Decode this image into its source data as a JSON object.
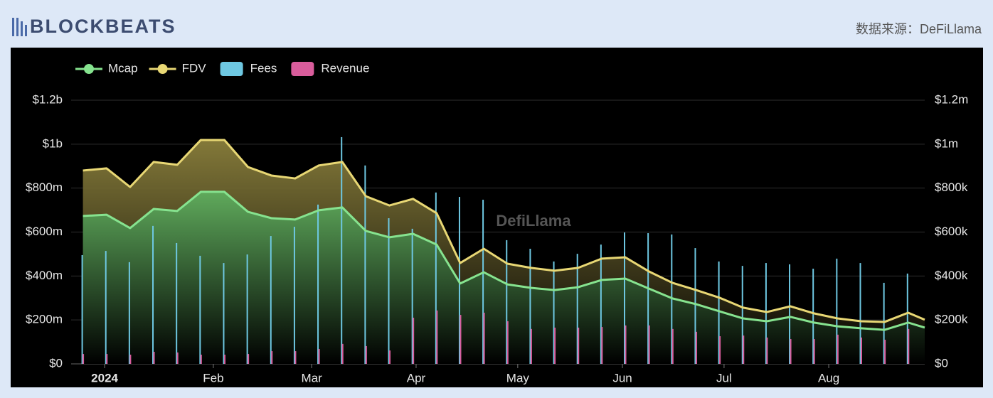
{
  "header": {
    "logo": "BLOCKBEATS",
    "source": "数据来源：DeFiLlama"
  },
  "chart_data": {
    "type": "line",
    "watermark": "DefiLlama",
    "x": [
      0,
      1,
      2,
      3,
      4,
      5,
      6,
      7,
      8,
      9,
      10,
      11,
      12,
      13,
      14,
      15,
      16,
      17,
      18,
      19,
      20,
      21,
      22,
      23,
      24,
      25,
      26,
      27,
      28,
      29,
      30,
      31,
      32,
      33,
      34,
      35,
      35.7
    ],
    "xlim": [
      -0.5,
      35.7
    ],
    "xticks": [
      {
        "value": 0.92,
        "label": "2024"
      },
      {
        "value": 5.53,
        "label": "Feb"
      },
      {
        "value": 9.7,
        "label": "Mar"
      },
      {
        "value": 14.13,
        "label": "Apr"
      },
      {
        "value": 18.44,
        "label": "May"
      },
      {
        "value": 22.88,
        "label": "Jun"
      },
      {
        "value": 27.19,
        "label": "Jul"
      },
      {
        "value": 31.63,
        "label": "Aug"
      }
    ],
    "ylim": [
      0,
      1200000000
    ],
    "yticks": [
      {
        "value": 0,
        "label": "$0"
      },
      {
        "value": 200000000,
        "label": "$200m"
      },
      {
        "value": 400000000,
        "label": "$400m"
      },
      {
        "value": 600000000,
        "label": "$600m"
      },
      {
        "value": 800000000,
        "label": "$800m"
      },
      {
        "value": 1000000000,
        "label": "$1b"
      },
      {
        "value": 1200000000,
        "label": "$1.2b"
      }
    ],
    "y2lim": [
      0,
      1200000
    ],
    "y2ticks": [
      {
        "value": 0,
        "label": "$0"
      },
      {
        "value": 200000,
        "label": "$200k"
      },
      {
        "value": 400000,
        "label": "$400k"
      },
      {
        "value": 600000,
        "label": "$600k"
      },
      {
        "value": 800000,
        "label": "$800k"
      },
      {
        "value": 1000000,
        "label": "$1m"
      },
      {
        "value": 1200000,
        "label": "$1.2m"
      }
    ],
    "grid": true,
    "legend": "top-left",
    "series": [
      {
        "name": "Mcap",
        "type": "line",
        "color": "#86e38f",
        "values": [
          673000000,
          679000000,
          618000000,
          705000000,
          696000000,
          783000000,
          783000000,
          692000000,
          663000000,
          657000000,
          699000000,
          712000000,
          605000000,
          576000000,
          592000000,
          543000000,
          366000000,
          417000000,
          362000000,
          346000000,
          336000000,
          349000000,
          382000000,
          388000000,
          343000000,
          298000000,
          272000000,
          239000000,
          207000000,
          194000000,
          214000000,
          188000000,
          171000000,
          162000000,
          155000000,
          188000000,
          165000000
        ]
      },
      {
        "name": "FDV",
        "type": "line",
        "color": "#e8d774",
        "values": [
          880000000,
          890000000,
          805000000,
          919000000,
          906000000,
          1019000000,
          1019000000,
          896000000,
          857000000,
          844000000,
          903000000,
          919000000,
          763000000,
          721000000,
          751000000,
          686000000,
          459000000,
          524000000,
          456000000,
          437000000,
          424000000,
          437000000,
          479000000,
          485000000,
          421000000,
          369000000,
          336000000,
          301000000,
          256000000,
          236000000,
          262000000,
          230000000,
          207000000,
          194000000,
          191000000,
          233000000,
          201000000
        ]
      },
      {
        "name": "Fees",
        "type": "bar",
        "axis": "y2",
        "color": "#6ec8e2",
        "values": [
          495000,
          514000,
          463000,
          628000,
          550000,
          492000,
          459000,
          498000,
          582000,
          624000,
          725000,
          1032000,
          903000,
          663000,
          615000,
          780000,
          760000,
          747000,
          563000,
          524000,
          466000,
          501000,
          543000,
          598000,
          595000,
          589000,
          527000,
          466000,
          446000,
          459000,
          453000,
          433000,
          479000,
          459000,
          369000,
          411000,
          null
        ]
      },
      {
        "name": "Revenue",
        "type": "bar",
        "axis": "y2",
        "color": "#d95d9c",
        "values": [
          45000,
          45000,
          42000,
          55000,
          52000,
          42000,
          42000,
          45000,
          58000,
          58000,
          68000,
          91000,
          81000,
          61000,
          210000,
          243000,
          223000,
          233000,
          194000,
          159000,
          165000,
          165000,
          168000,
          175000,
          175000,
          159000,
          146000,
          126000,
          129000,
          120000,
          113000,
          113000,
          133000,
          120000,
          110000,
          159000,
          null
        ]
      }
    ]
  }
}
